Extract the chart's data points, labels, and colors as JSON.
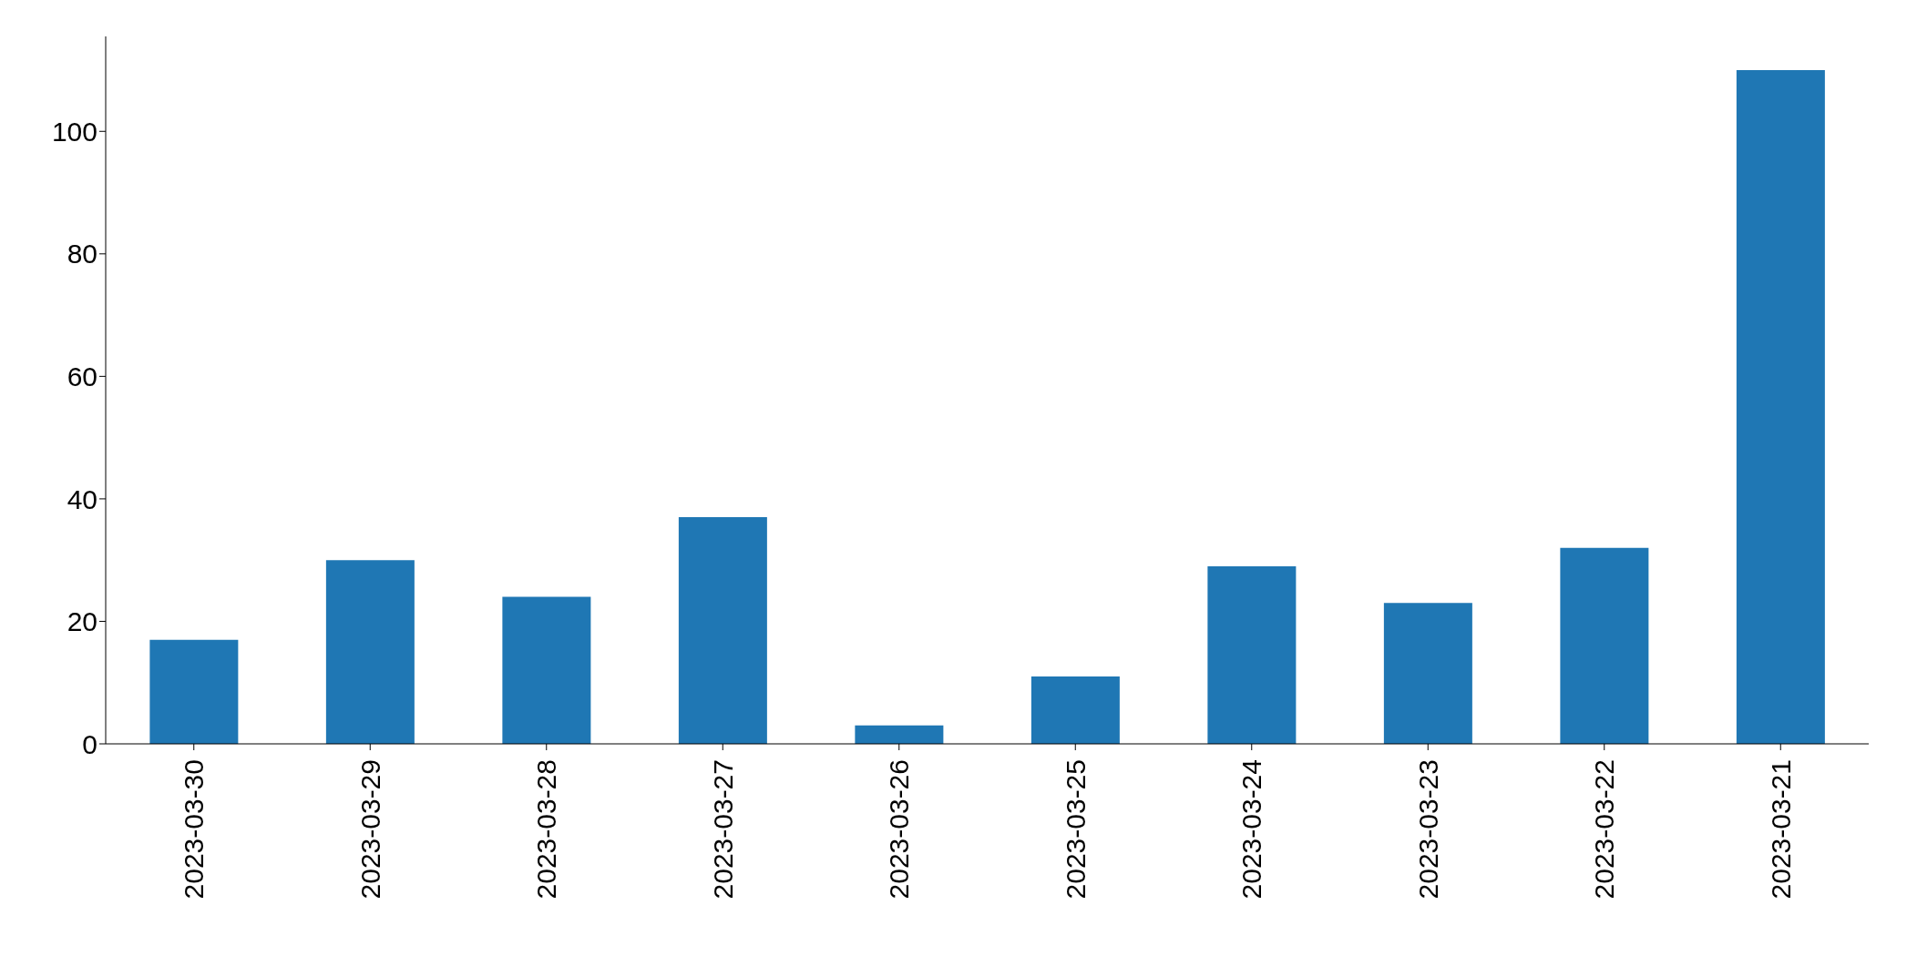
{
  "chart_data": {
    "type": "bar",
    "categories": [
      "2023-03-30",
      "2023-03-29",
      "2023-03-28",
      "2023-03-27",
      "2023-03-26",
      "2023-03-25",
      "2023-03-24",
      "2023-03-23",
      "2023-03-22",
      "2023-03-21"
    ],
    "values": [
      17,
      30,
      24,
      37,
      3,
      11,
      29,
      23,
      32,
      110
    ],
    "color": "#1f77b4",
    "ylim": [
      0,
      115.5
    ],
    "yticks": [
      0,
      20,
      40,
      60,
      80,
      100
    ],
    "grid": false,
    "legend": false
  }
}
